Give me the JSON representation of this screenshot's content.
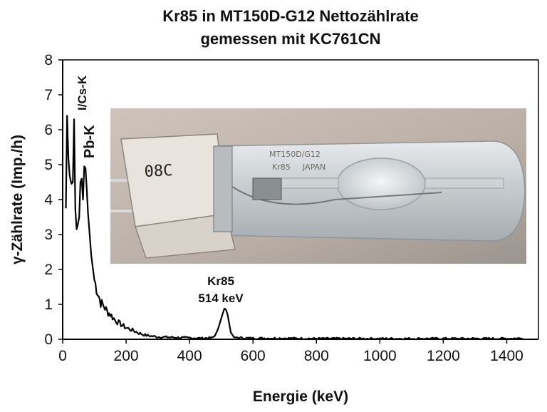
{
  "chart_data": {
    "type": "line",
    "title": "Kr85 in MT150D-G12 Nettozählrate",
    "subtitle": "gemessen mit KC761CN",
    "xlabel": "Energie (keV)",
    "ylabel": "γ-Zählrate (Imp./h)",
    "xlim": [
      0,
      1500
    ],
    "ylim": [
      0,
      8
    ],
    "xticks": [
      "0",
      "200",
      "400",
      "600",
      "800",
      "1000",
      "1200",
      "1400"
    ],
    "yticks": [
      "0",
      "1",
      "2",
      "3",
      "4",
      "5",
      "6",
      "7",
      "8"
    ],
    "grid": false,
    "legend": "none",
    "line_color": "#000000",
    "series": [
      {
        "x": [
          10,
          14,
          18,
          22,
          25,
          28,
          32,
          36,
          40,
          44,
          48,
          52,
          56,
          60,
          64,
          68,
          72,
          76,
          80,
          85,
          90,
          95,
          100,
          110,
          120,
          130,
          140,
          150,
          165,
          180,
          200,
          220,
          240,
          260,
          280,
          300,
          330,
          360,
          400,
          440,
          470,
          480,
          490,
          500,
          505,
          510,
          515,
          520,
          525,
          530,
          540,
          560,
          600,
          700,
          800,
          900,
          1000,
          1100,
          1200,
          1300,
          1400,
          1450
        ],
        "y": [
          3.75,
          6.4,
          5.2,
          4.7,
          4.55,
          4.45,
          4.5,
          6.3,
          3.7,
          3.15,
          3.3,
          3.5,
          4.5,
          4.6,
          4.0,
          4.95,
          4.9,
          4.3,
          3.6,
          3.0,
          2.4,
          2.05,
          1.7,
          1.35,
          1.05,
          0.95,
          0.8,
          0.72,
          0.55,
          0.45,
          0.33,
          0.26,
          0.18,
          0.12,
          0.09,
          0.07,
          0.06,
          0.05,
          0.04,
          0.03,
          0.04,
          0.1,
          0.3,
          0.6,
          0.75,
          0.88,
          0.85,
          0.7,
          0.45,
          0.2,
          0.06,
          0.04,
          0.03,
          0.03,
          0.02,
          0.02,
          0.02,
          0.02,
          0.02,
          0.02,
          0.02,
          0.03
        ]
      }
    ],
    "annotations": [
      {
        "text": "I/Cs-K",
        "x": 40,
        "y": 6.5,
        "rotated": true
      },
      {
        "text": "Pb-K",
        "x": 75,
        "y": 5.0,
        "rotated": true
      },
      {
        "text": "Kr85",
        "x": 510,
        "y": 1.6
      },
      {
        "text": "514 keV",
        "x": 510,
        "y": 1.1
      }
    ],
    "inset_photo": {
      "description_labels": [
        "08C",
        "MT150D/G12",
        "Kr85",
        "JAPAN"
      ]
    }
  }
}
